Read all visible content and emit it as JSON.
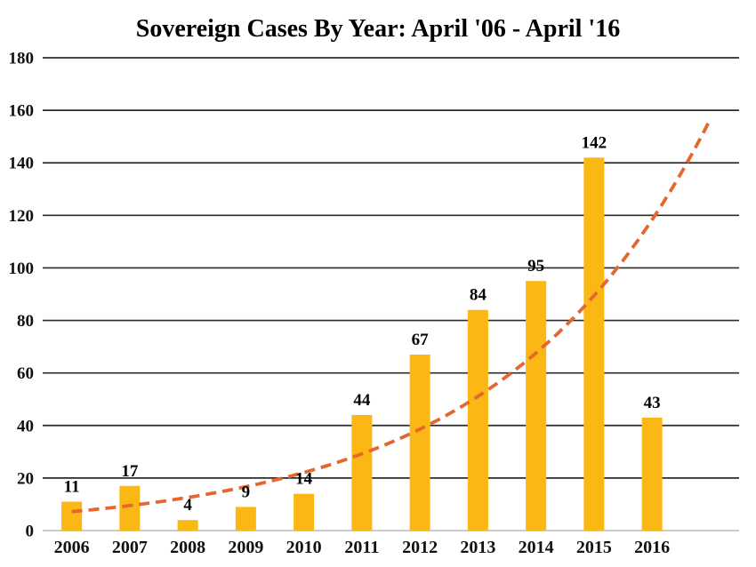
{
  "chart_data": {
    "type": "bar",
    "title": "Sovereign Cases By Year: April '06 - April '16",
    "categories": [
      "2006",
      "2007",
      "2008",
      "2009",
      "2010",
      "2011",
      "2012",
      "2013",
      "2014",
      "2015",
      "2016"
    ],
    "values": [
      11,
      17,
      4,
      9,
      14,
      44,
      67,
      84,
      95,
      142,
      43
    ],
    "value_labels": [
      "11",
      "17",
      "4",
      "9",
      "14",
      "44",
      "67",
      "84",
      "95",
      "142",
      "43"
    ],
    "y_ticks": [
      0,
      20,
      40,
      60,
      80,
      100,
      120,
      140,
      160,
      180
    ],
    "ylim": [
      0,
      180
    ],
    "xlabel": "",
    "ylabel": "",
    "grid": "horizontal",
    "legend": "none",
    "colors": {
      "bar": "#FBB713",
      "gridline": "#2b2b2b",
      "baseline": "#cccccc",
      "text": "#000000",
      "trendline": "#E4682E"
    },
    "trendline": {
      "type": "exponential",
      "style": "dashed",
      "color": "#E4682E",
      "dash": [
        12,
        7
      ],
      "values_by_year": [
        7.2,
        9.5,
        12.6,
        16.7,
        22.1,
        29.2,
        38.6,
        51.1,
        67.6,
        89.4,
        118.3
      ],
      "forecast_value": 156.5,
      "forward_periods": 1
    }
  }
}
